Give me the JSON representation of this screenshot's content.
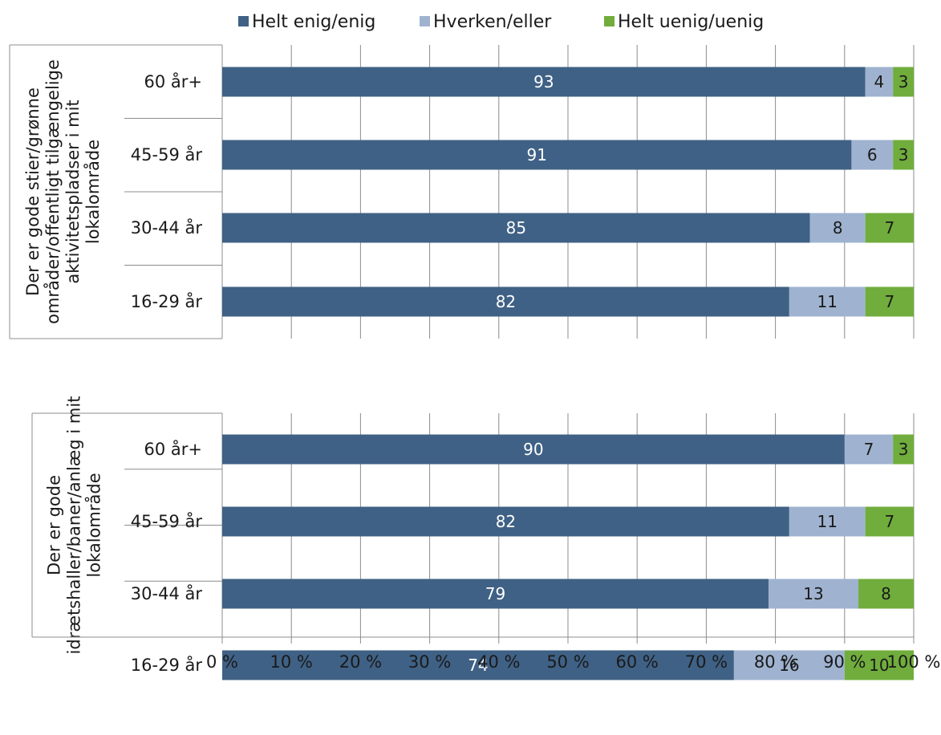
{
  "chart_data": {
    "type": "bar",
    "orientation": "horizontal",
    "stacked": true,
    "legend_position": "top",
    "grid": true,
    "series_meta": [
      {
        "name": "Helt enig/enig",
        "color": "#3f6185"
      },
      {
        "name": "Hverken/eller",
        "color": "#9fb3d0"
      },
      {
        "name": "Helt uenig/uenig",
        "color": "#70ad3c"
      }
    ],
    "groups": [
      {
        "label": [
          "Der er gode stier/grønne",
          "områder/offentligt tilgængelige",
          "aktivitetspladser i mit",
          "lokalområde"
        ],
        "categories": [
          "60 år+",
          "45-59 år",
          "30-44 år",
          "16-29 år"
        ],
        "series": [
          {
            "name": "Helt enig/enig",
            "values": [
              93,
              91,
              85,
              82
            ]
          },
          {
            "name": "Hverken/eller",
            "values": [
              4,
              6,
              8,
              11
            ]
          },
          {
            "name": "Helt uenig/uenig",
            "values": [
              3,
              3,
              7,
              7
            ]
          }
        ]
      },
      {
        "label": [
          "Der er gode",
          "idrætshaller/baner/anlæg i mit",
          "lokalområde"
        ],
        "categories": [
          "60 år+",
          "45-59 år",
          "30-44 år",
          "16-29 år"
        ],
        "series": [
          {
            "name": "Helt enig/enig",
            "values": [
              90,
              82,
              79,
              74
            ]
          },
          {
            "name": "Hverken/eller",
            "values": [
              7,
              11,
              13,
              16
            ]
          },
          {
            "name": "Helt uenig/uenig",
            "values": [
              3,
              7,
              8,
              10
            ]
          }
        ]
      }
    ],
    "x_ticks": [
      "0 %",
      "10 %",
      "20 %",
      "30 %",
      "40 %",
      "50 %",
      "60 %",
      "70 %",
      "80 %",
      "90 %",
      "100 %"
    ],
    "xlim": [
      0,
      100
    ],
    "label_colors": [
      "#ffffff",
      "#1a1a1a",
      "#1a1a1a"
    ]
  }
}
